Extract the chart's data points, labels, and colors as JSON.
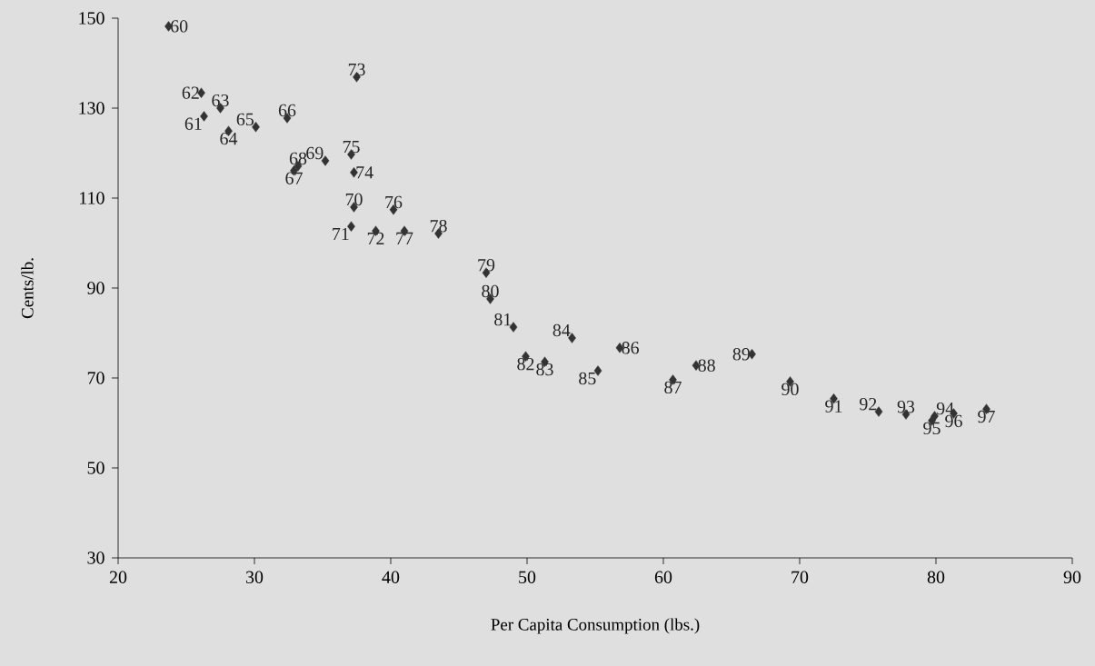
{
  "chart_data": {
    "type": "scatter",
    "xlabel": "Per Capita Consumption (lbs.)",
    "ylabel": "Cents/lb.",
    "xlim": [
      20,
      90
    ],
    "xticks": [
      20,
      30,
      40,
      50,
      60,
      70,
      80,
      90
    ],
    "ylim": [
      30,
      150
    ],
    "yticks": [
      30,
      50,
      70,
      90,
      110,
      130,
      150
    ],
    "marker": "diamond",
    "grid": false,
    "series": [
      {
        "color": "#333333",
        "x": [
          23.7,
          26.3,
          26.1,
          27.5,
          28.1,
          30.1,
          32.4,
          32.9,
          33.2,
          35.2,
          37.3,
          37.1,
          38.9,
          37.5,
          37.3,
          37.1,
          40.2,
          41.0,
          43.5,
          47.0,
          47.3,
          49.0,
          49.9,
          51.3,
          53.3,
          55.2,
          56.8,
          60.7,
          62.4,
          66.5,
          69.3,
          72.5,
          75.8,
          77.8,
          79.9,
          79.7,
          81.3,
          83.7
        ],
        "values": [
          148.2,
          128.2,
          133.4,
          130.0,
          124.9,
          125.8,
          127.8,
          116.1,
          117.1,
          118.3,
          108.0,
          103.7,
          102.7,
          136.9,
          115.7,
          119.7,
          107.4,
          102.7,
          102.1,
          93.4,
          87.6,
          81.3,
          74.8,
          73.6,
          78.9,
          71.6,
          76.7,
          69.6,
          72.8,
          75.3,
          69.2,
          65.4,
          62.5,
          61.9,
          61.5,
          60.5,
          62.1,
          63.1
        ]
      }
    ],
    "annotations": [
      {
        "text": "60",
        "x": 23.7,
        "y": 148.2
      },
      {
        "text": "61",
        "x": 26.3,
        "y": 128.2
      },
      {
        "text": "62",
        "x": 26.1,
        "y": 133.4
      },
      {
        "text": "63",
        "x": 27.5,
        "y": 130.0
      },
      {
        "text": "64",
        "x": 28.1,
        "y": 124.9
      },
      {
        "text": "65",
        "x": 30.1,
        "y": 125.8
      },
      {
        "text": "66",
        "x": 32.4,
        "y": 127.8
      },
      {
        "text": "67",
        "x": 32.9,
        "y": 116.1
      },
      {
        "text": "68",
        "x": 33.2,
        "y": 117.1
      },
      {
        "text": "69",
        "x": 35.2,
        "y": 118.3
      },
      {
        "text": "70",
        "x": 37.3,
        "y": 108.0
      },
      {
        "text": "71",
        "x": 37.1,
        "y": 103.7
      },
      {
        "text": "72",
        "x": 38.9,
        "y": 102.7
      },
      {
        "text": "73",
        "x": 37.5,
        "y": 136.9
      },
      {
        "text": "74",
        "x": 37.3,
        "y": 115.7
      },
      {
        "text": "75",
        "x": 37.1,
        "y": 119.7
      },
      {
        "text": "76",
        "x": 40.2,
        "y": 107.4
      },
      {
        "text": "77",
        "x": 41.0,
        "y": 102.7
      },
      {
        "text": "78",
        "x": 43.5,
        "y": 102.1
      },
      {
        "text": "79",
        "x": 47.0,
        "y": 93.4
      },
      {
        "text": "80",
        "x": 47.3,
        "y": 87.6
      },
      {
        "text": "81",
        "x": 49.0,
        "y": 81.3
      },
      {
        "text": "82",
        "x": 49.9,
        "y": 74.8
      },
      {
        "text": "83",
        "x": 51.3,
        "y": 73.6
      },
      {
        "text": "84",
        "x": 53.3,
        "y": 78.9
      },
      {
        "text": "85",
        "x": 55.2,
        "y": 71.6
      },
      {
        "text": "86",
        "x": 56.8,
        "y": 76.7
      },
      {
        "text": "87",
        "x": 60.7,
        "y": 69.6
      },
      {
        "text": "88",
        "x": 62.4,
        "y": 72.8
      },
      {
        "text": "89",
        "x": 66.5,
        "y": 75.3
      },
      {
        "text": "90",
        "x": 69.3,
        "y": 69.2
      },
      {
        "text": "91",
        "x": 72.5,
        "y": 65.4
      },
      {
        "text": "92",
        "x": 75.8,
        "y": 62.5
      },
      {
        "text": "93",
        "x": 77.8,
        "y": 61.9
      },
      {
        "text": "94",
        "x": 79.9,
        "y": 61.5
      },
      {
        "text": "95",
        "x": 79.7,
        "y": 60.5
      },
      {
        "text": "96",
        "x": 81.3,
        "y": 62.1
      },
      {
        "text": "97",
        "x": 83.7,
        "y": 63.1
      }
    ]
  }
}
